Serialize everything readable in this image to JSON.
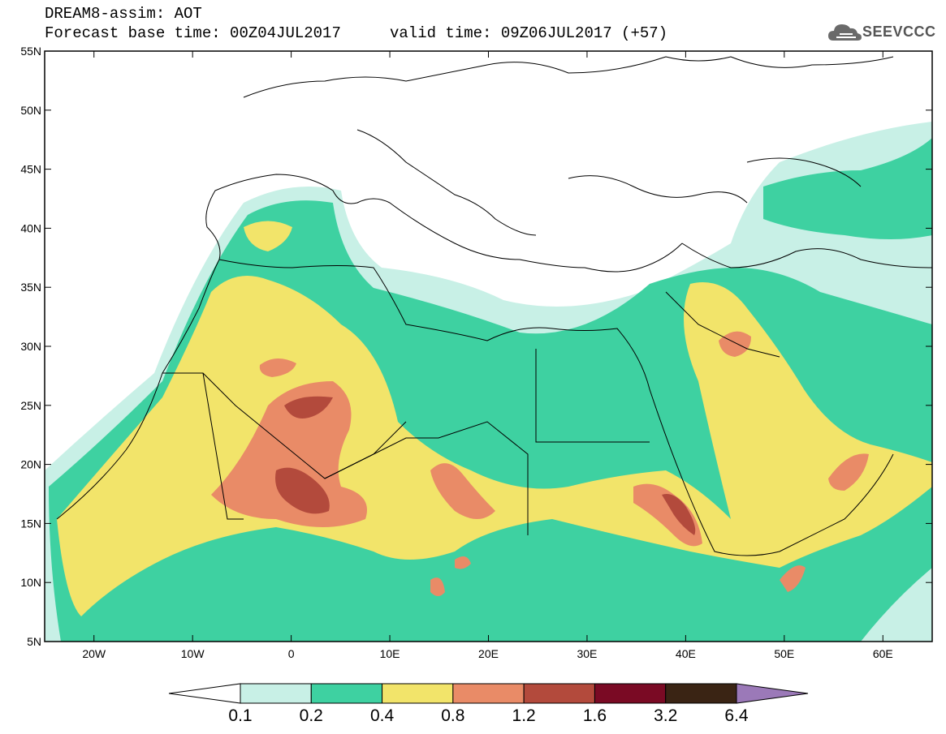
{
  "header": {
    "title": "DREAM8-assim: AOT",
    "base_time": "Forecast base time: 00Z04JUL2017",
    "valid_time": "valid time: 09Z06JUL2017 (+57)",
    "logo_text": "SEEVCCC"
  },
  "map": {
    "lat_labels": [
      "55N",
      "50N",
      "45N",
      "40N",
      "35N",
      "30N",
      "25N",
      "20N",
      "15N",
      "10N",
      "5N"
    ],
    "lon_labels": [
      "20W",
      "10W",
      "0",
      "10E",
      "20E",
      "30E",
      "40E",
      "50E",
      "60E"
    ],
    "lon_range": [
      -25,
      65
    ],
    "lat_range": [
      5,
      55
    ]
  },
  "colorbar": {
    "labels": [
      "0.1",
      "0.2",
      "0.4",
      "0.8",
      "1.2",
      "1.6",
      "3.2",
      "6.4"
    ],
    "colors": [
      "#c8f0e6",
      "#3ed1a1",
      "#f2e46a",
      "#e98b67",
      "#b34a3c",
      "#7a0a24",
      "#3a2414",
      "#9b79b8"
    ],
    "under_color": "#ffffff"
  }
}
